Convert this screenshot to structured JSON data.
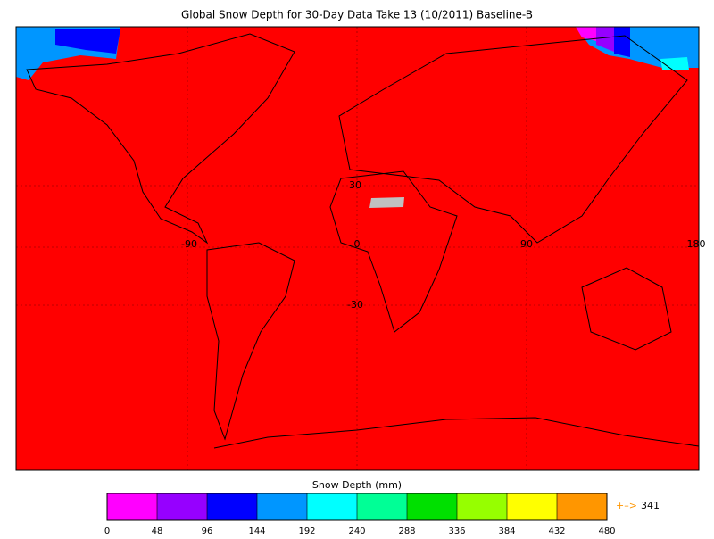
{
  "title": "Global Snow Depth for 30-Day Data Take 13 (10/2011) Baseline-B",
  "map": {
    "background": "#ff0000",
    "lat_labels": [
      "30",
      "-30"
    ],
    "lon_labels": [
      "-90",
      "0",
      "90",
      "180"
    ]
  },
  "colorbar": {
    "label": "Snow Depth (mm)",
    "ticks": [
      0,
      48,
      96,
      144,
      192,
      240,
      288,
      336,
      384,
      432,
      480
    ],
    "colors": [
      "#ff00ff",
      "#9600ff",
      "#0000ff",
      "#0096ff",
      "#00ffff",
      "#00ff96",
      "#00e000",
      "#96ff00",
      "#ffff00",
      "#ff9600"
    ],
    "overflow_arrow": "+–>",
    "overflow_value": 341
  }
}
